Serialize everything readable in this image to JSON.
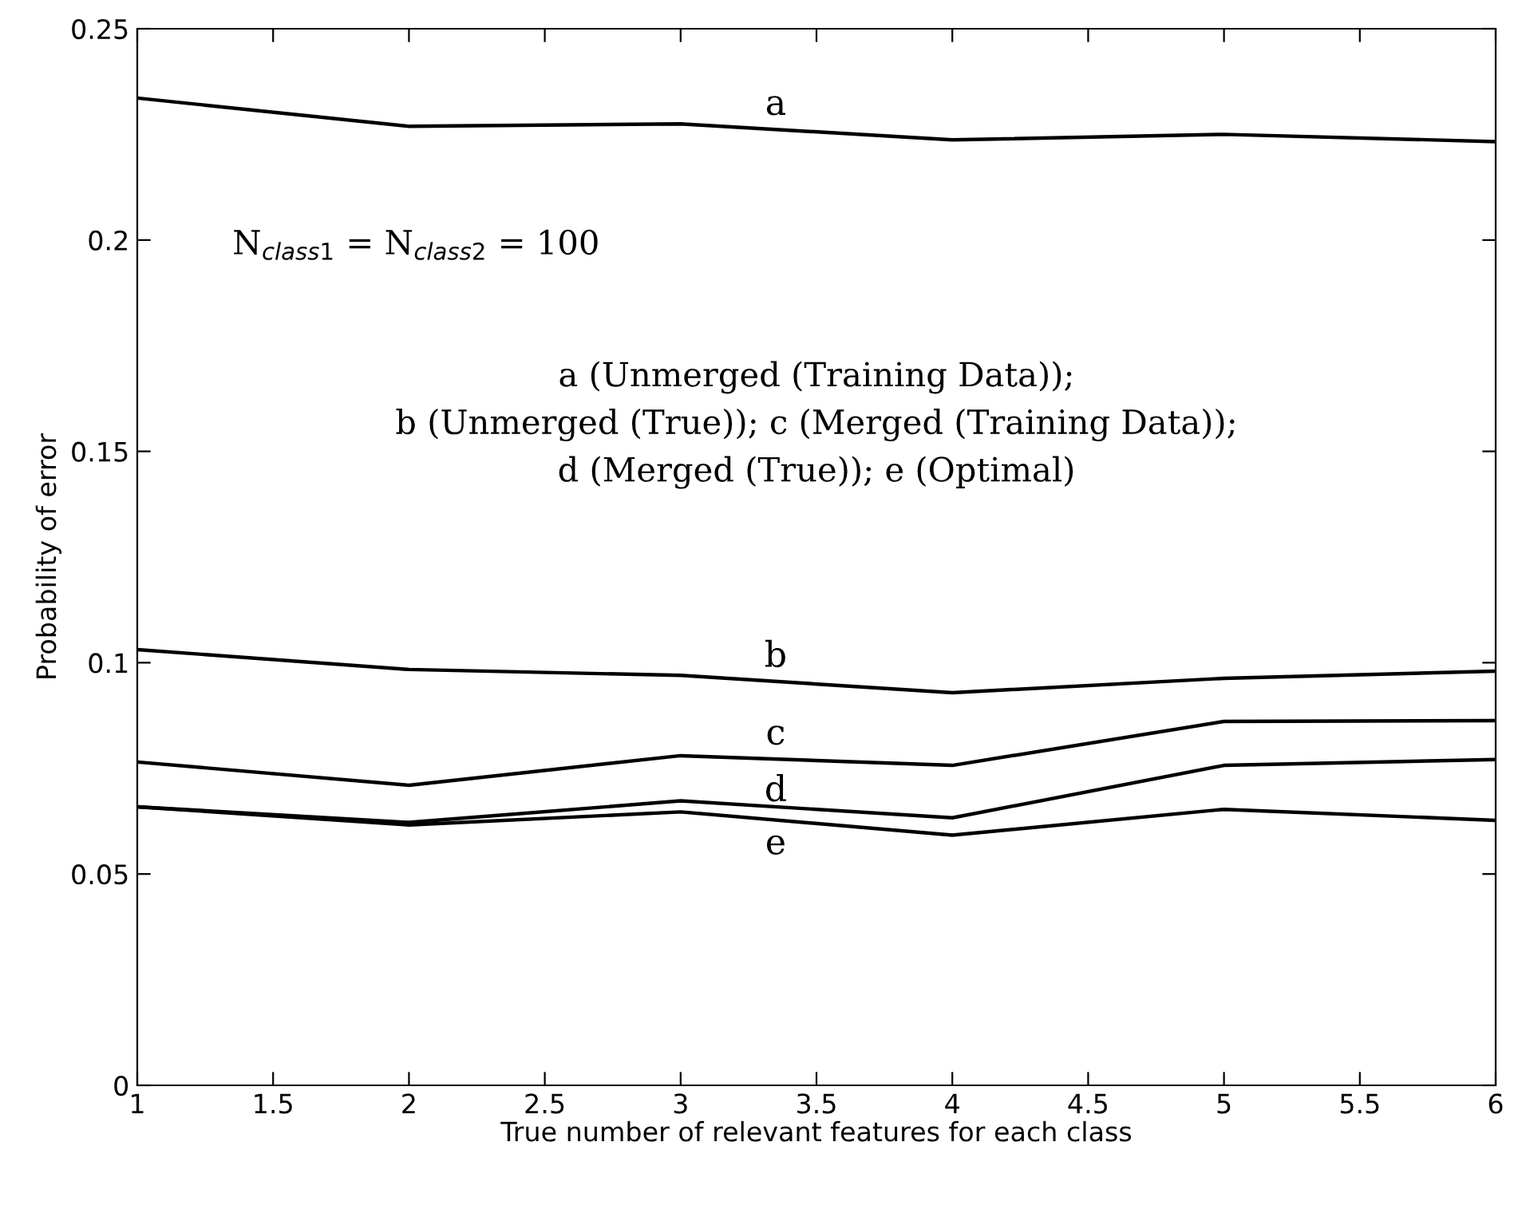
{
  "chart_data": {
    "type": "line",
    "xlabel": "True number of relevant features for each class",
    "ylabel": "Probability of error",
    "x": [
      1,
      2,
      3,
      4,
      5,
      6
    ],
    "series": [
      {
        "name": "a",
        "color": "#000000",
        "values": [
          0.2336,
          0.2269,
          0.2275,
          0.2237,
          0.225,
          0.2233
        ]
      },
      {
        "name": "b",
        "color": "#000000",
        "values": [
          0.1031,
          0.0984,
          0.097,
          0.0929,
          0.0963,
          0.098
        ]
      },
      {
        "name": "c",
        "color": "#000000",
        "values": [
          0.0765,
          0.071,
          0.078,
          0.0757,
          0.0861,
          0.0863
        ]
      },
      {
        "name": "d",
        "color": "#000000",
        "values": [
          0.0659,
          0.0622,
          0.0673,
          0.0633,
          0.0757,
          0.0771
        ]
      },
      {
        "name": "e",
        "color": "#000000",
        "values": [
          0.0659,
          0.0616,
          0.0647,
          0.0592,
          0.0653,
          0.0627
        ]
      }
    ],
    "xlim": [
      1,
      6
    ],
    "xticks": [
      1,
      1.5,
      2,
      2.5,
      3,
      3.5,
      4,
      4.5,
      5,
      5.5,
      6
    ],
    "ylim": [
      0,
      0.25
    ],
    "yticks": [
      0,
      0.05,
      0.1,
      0.15,
      0.2,
      0.25
    ],
    "grid": false,
    "legend": false,
    "marker": "none",
    "line_style": "solid",
    "annotations": [
      "N$_{class1}$ = N$_{class2}$ = 100",
      "a (Unmerged (Training Data));",
      "b (Unmerged (True)); c (Merged (Training Data));",
      "d (Merged (True)); e (Optimal)"
    ]
  }
}
